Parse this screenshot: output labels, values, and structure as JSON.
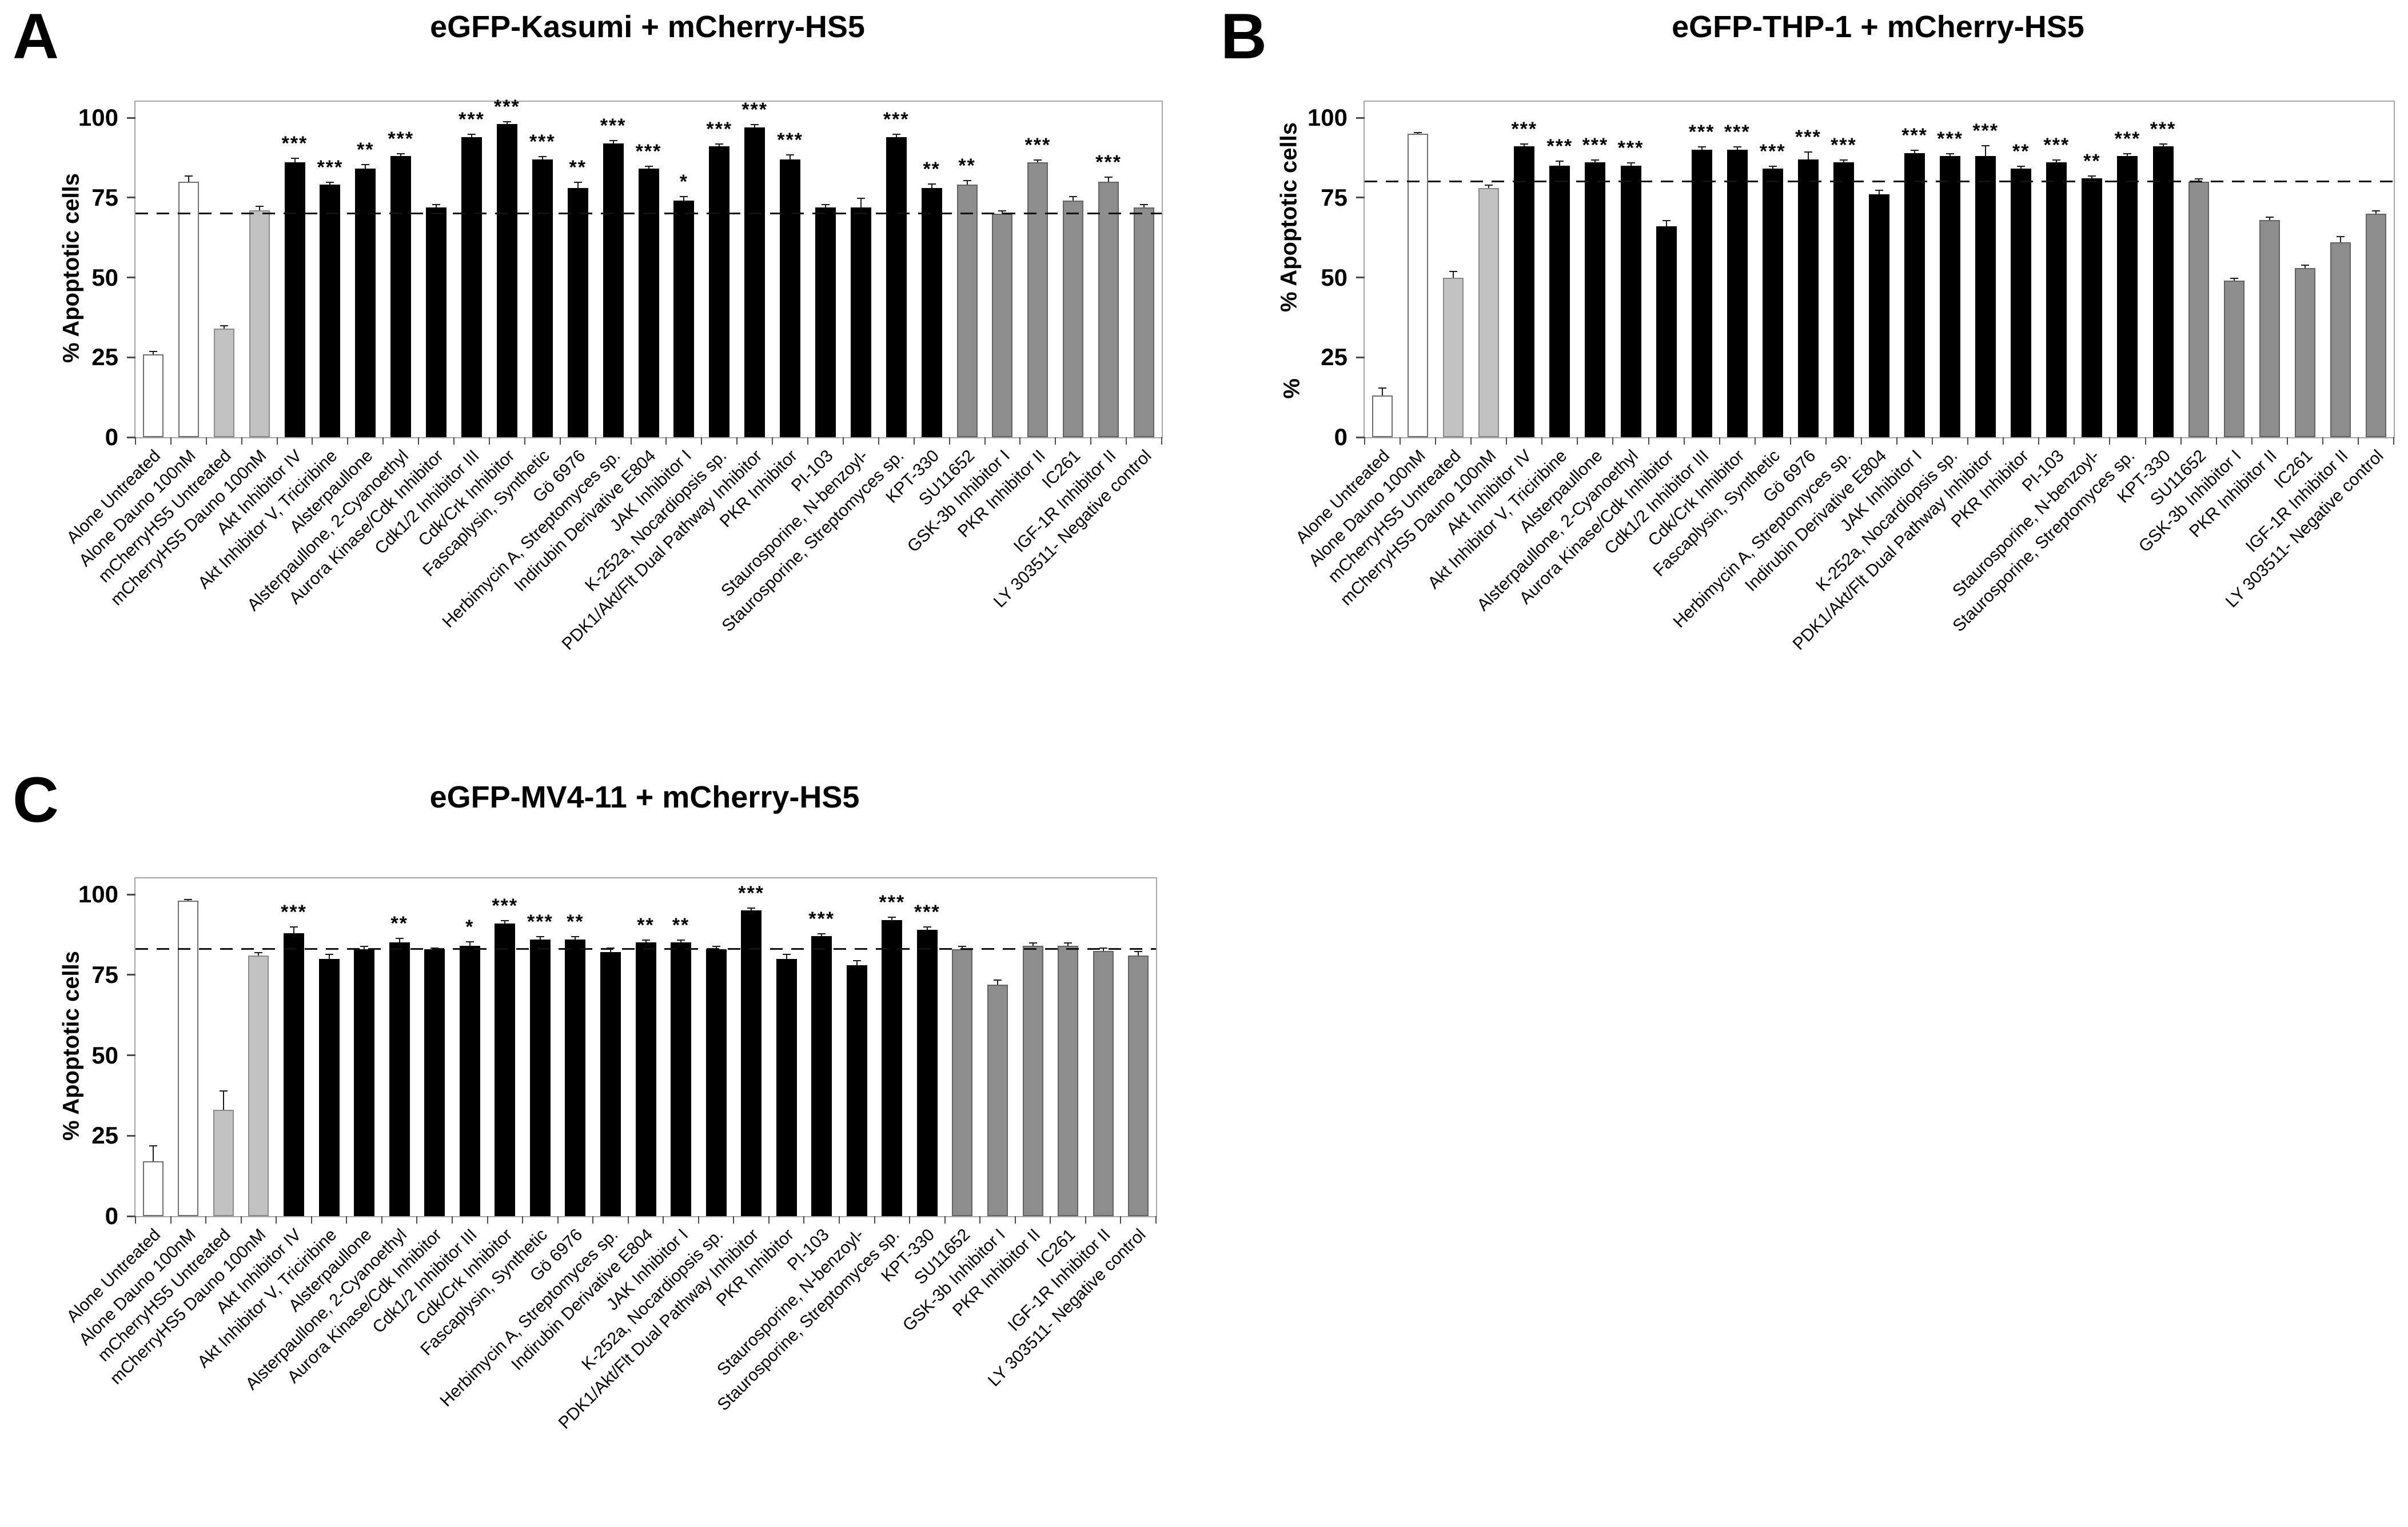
{
  "figure": {
    "background": "#ffffff"
  },
  "colors": {
    "bar_white": "#ffffff",
    "bar_light_gray": "#c2c2c2",
    "bar_black": "#000000",
    "bar_gray": "#8d8d8d",
    "border_white": "#707070",
    "border_light_gray": "#8a8a8a",
    "border_black": "#000000",
    "border_gray": "#636363",
    "error_bar": "#1a1a1a",
    "dashed_line": "#111111",
    "axis_border": "#a6a6a6",
    "tick": "#4a4a4a",
    "text": "#000000"
  },
  "chart_data": [
    {
      "panel_letter": "A",
      "type": "bar",
      "title": "eGFP-Kasumi + mCherry-HS5",
      "ylabel": "% Apoptotic cells",
      "ylabel_line2": "",
      "xlabel": "",
      "ylim": [
        0,
        100
      ],
      "yticks": [
        0,
        25,
        50,
        75,
        100
      ],
      "dashed_line_y": 70,
      "grid": false,
      "legend": false,
      "categories": [
        "Alone Untreated",
        "Alone Dauno 100nM",
        "mCherryHS5 Untreated",
        "mCherryHS5 Dauno 100nM",
        "Akt Inhibitor IV",
        "Akt Inhibitor V, Triciribine",
        "Alsterpaullone",
        "Alsterpaullone, 2-Cyanoethyl",
        "Aurora Kinase/Cdk Inhibitor",
        "Cdk1/2 Inhibitor III",
        "Cdk/Crk Inhibitor",
        "Fascaplysin, Synthetic",
        "Gö 6976",
        "Herbimycin A, Streptomyces sp.",
        "Indirubin Derivative E804",
        "JAK Inhibitor I",
        "K-252a, Nocardiopsis sp.",
        "PDK1/Akt/Flt Dual Pathway Inhibitor",
        "PKR Inhibitor",
        "PI-103",
        "Staurosporine, N-benzoyl-",
        "Staurosporine, Streptomyces sp.",
        "KPT-330",
        "SU11652",
        "GSK-3b Inhibitor I",
        "PKR Inhibitor II",
        "IC261",
        "IGF-1R Inhibitor II",
        "LY 303511- Negative control"
      ],
      "values": [
        26,
        80,
        34,
        71,
        86,
        79,
        84,
        88,
        72,
        94,
        98,
        87,
        78,
        92,
        84,
        74,
        91,
        97,
        87,
        72,
        72,
        94,
        78,
        79,
        70,
        86,
        74,
        80,
        72
      ],
      "errors": [
        1,
        2,
        1,
        1.5,
        1.5,
        1,
        1.5,
        1,
        1,
        1,
        1,
        1,
        2,
        1,
        1,
        1.5,
        1,
        1,
        1.5,
        1,
        3,
        1,
        1.5,
        1.5,
        1,
        1,
        1.5,
        1.5,
        1
      ],
      "significance": [
        "",
        "",
        "",
        "",
        "***",
        "***",
        "**",
        "***",
        "",
        "***",
        "***",
        "***",
        "**",
        "***",
        "***",
        "*",
        "***",
        "***",
        "***",
        "",
        "",
        "***",
        "**",
        "**",
        "",
        "***",
        "",
        "***",
        ""
      ],
      "bar_styles": [
        "white",
        "white",
        "light_gray",
        "light_gray",
        "black",
        "black",
        "black",
        "black",
        "black",
        "black",
        "black",
        "black",
        "black",
        "black",
        "black",
        "black",
        "black",
        "black",
        "black",
        "black",
        "black",
        "black",
        "black",
        "gray",
        "gray",
        "gray",
        "gray",
        "gray",
        "gray"
      ]
    },
    {
      "panel_letter": "B",
      "type": "bar",
      "title": "eGFP-THP-1 + mCherry-HS5",
      "ylabel": "% Apoptotic cells",
      "ylabel_line2": "%",
      "xlabel": "",
      "ylim": [
        0,
        100
      ],
      "yticks": [
        0,
        25,
        50,
        75,
        100
      ],
      "dashed_line_y": 80,
      "grid": false,
      "legend": false,
      "categories": [
        "Alone Untreated",
        "Alone Dauno 100nM",
        "mCherryHS5 Untreated",
        "mCherryHS5 Dauno 100nM",
        "Akt Inhibitor IV",
        "Akt Inhibitor V, Triciribine",
        "Alsterpaullone",
        "Alsterpaullone, 2-Cyanoethyl",
        "Aurora Kinase/Cdk Inhibitor",
        "Cdk1/2 Inhibitor III",
        "Cdk/Crk Inhibitor",
        "Fascaplysin, Synthetic",
        "Gö 6976",
        "Herbimycin A, Streptomyces sp.",
        "Indirubin Derivative E804",
        "JAK Inhibitor I",
        "K-252a, Nocardiopsis sp.",
        "PDK1/Akt/Flt Dual Pathway Inhibitor",
        "PKR Inhibitor",
        "PI-103",
        "Staurosporine, N-benzoyl-",
        "Staurosporine, Streptomyces sp.",
        "KPT-330",
        "SU11652",
        "GSK-3b Inhibitor I",
        "PKR Inhibitor II",
        "IC261",
        "IGF-1R Inhibitor II",
        "LY 303511- Negative control"
      ],
      "values": [
        13,
        95,
        50,
        78,
        91,
        85,
        86,
        85,
        66,
        90,
        90,
        84,
        87,
        86,
        76,
        89,
        88,
        88,
        84,
        86,
        81,
        88,
        91,
        80,
        49,
        68,
        53,
        61,
        70
      ],
      "errors": [
        2.5,
        0.5,
        2,
        1,
        1,
        1.5,
        1,
        1,
        2,
        1,
        1,
        1,
        2.5,
        1,
        1.5,
        1,
        1,
        3.5,
        1,
        1,
        1,
        1,
        1,
        1,
        1,
        1,
        1,
        2,
        1
      ],
      "significance": [
        "",
        "",
        "",
        "",
        "***",
        "***",
        "***",
        "***",
        "",
        "***",
        "***",
        "***",
        "***",
        "***",
        "",
        "***",
        "***",
        "***",
        "**",
        "***",
        "**",
        "***",
        "***",
        "",
        "",
        "",
        "",
        "",
        ""
      ],
      "bar_styles": [
        "white",
        "white",
        "light_gray",
        "light_gray",
        "black",
        "black",
        "black",
        "black",
        "black",
        "black",
        "black",
        "black",
        "black",
        "black",
        "black",
        "black",
        "black",
        "black",
        "black",
        "black",
        "black",
        "black",
        "black",
        "gray",
        "gray",
        "gray",
        "gray",
        "gray",
        "gray"
      ]
    },
    {
      "panel_letter": "C",
      "type": "bar",
      "title": "eGFP-MV4-11 + mCherry-HS5",
      "ylabel": "% Apoptotic cells",
      "ylabel_line2": "",
      "xlabel": "",
      "ylim": [
        0,
        100
      ],
      "yticks": [
        0,
        25,
        50,
        75,
        100
      ],
      "dashed_line_y": 83,
      "grid": false,
      "legend": false,
      "categories": [
        "Alone Untreated",
        "Alone Dauno 100nM",
        "mCherryHS5 Untreated",
        "mCherryHS5 Dauno 100nM",
        "Akt Inhibitor IV",
        "Akt Inhibitor V, Triciribine",
        "Alsterpaullone",
        "Alsterpaullone, 2-Cyanoethyl",
        "Aurora Kinase/Cdk Inhibitor",
        "Cdk1/2 Inhibitor III",
        "Cdk/Crk Inhibitor",
        "Fascaplysin, Synthetic",
        "Gö 6976",
        "Herbimycin A, Streptomyces sp.",
        "Indirubin Derivative E804",
        "JAK Inhibitor I",
        "K-252a, Nocardiopsis sp.",
        "PDK1/Akt/Flt Dual Pathway Inhibitor",
        "PKR Inhibitor",
        "PI-103",
        "Staurosporine, N-benzoyl-",
        "Staurosporine, Streptomyces sp.",
        "KPT-330",
        "SU11652",
        "GSK-3b Inhibitor I",
        "PKR Inhibitor II",
        "IC261",
        "IGF-1R Inhibitor II",
        "LY 303511- Negative control"
      ],
      "values": [
        17,
        98,
        33,
        81,
        88,
        80,
        83,
        85,
        83,
        84,
        91,
        86,
        86,
        82,
        85,
        85,
        83,
        95,
        80,
        87,
        78,
        92,
        89,
        83,
        72,
        84,
        84,
        82.5,
        81
      ],
      "errors": [
        5,
        0.5,
        6,
        1,
        2,
        1.5,
        1,
        1.5,
        0.5,
        1.5,
        1,
        1,
        1,
        1.5,
        1,
        1,
        1,
        1,
        1.5,
        1,
        1.5,
        1,
        1,
        1,
        1.5,
        1,
        1,
        1,
        1.5
      ],
      "significance": [
        "",
        "",
        "",
        "",
        "***",
        "",
        "",
        "**",
        "",
        "*",
        "***",
        "***",
        "**",
        "",
        "**",
        "**",
        "",
        "***",
        "",
        "***",
        "",
        "***",
        "***",
        "",
        "",
        "",
        "",
        "",
        ""
      ],
      "bar_styles": [
        "white",
        "white",
        "light_gray",
        "light_gray",
        "black",
        "black",
        "black",
        "black",
        "black",
        "black",
        "black",
        "black",
        "black",
        "black",
        "black",
        "black",
        "black",
        "black",
        "black",
        "black",
        "black",
        "black",
        "black",
        "gray",
        "gray",
        "gray",
        "gray",
        "gray",
        "gray"
      ]
    }
  ]
}
